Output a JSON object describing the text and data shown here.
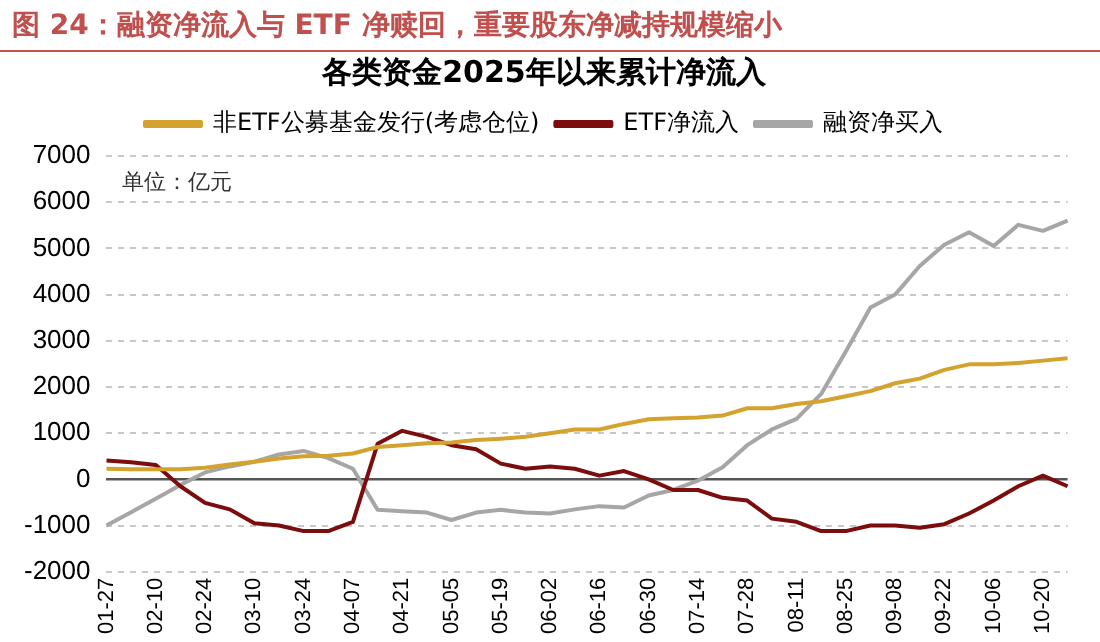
{
  "chart_data": {
    "type": "line",
    "title": "图 24：融资净流入与 ETF 净赎回，重要股东净减持规模缩小",
    "subtitle": "各类资金2025年以来累计净流入",
    "annotations": [
      "单位：亿元"
    ],
    "categories": [
      "01-27",
      null,
      "02-10",
      null,
      "02-24",
      null,
      "03-10",
      null,
      "03-24",
      null,
      "04-07",
      null,
      "04-21",
      null,
      "05-05",
      null,
      "05-19",
      null,
      "06-02",
      null,
      "06-16",
      null,
      "06-30",
      null,
      "07-14",
      null,
      "07-28",
      null,
      "08-11",
      null,
      "08-25",
      null,
      "09-08",
      null,
      "09-22",
      null,
      "10-06",
      null,
      "10-20",
      null
    ],
    "series": [
      {
        "name": "非ETF公募基金发行(考虑仓位)",
        "color": "#d4a22e",
        "values": [
          230,
          220,
          220,
          220,
          250,
          320,
          380,
          450,
          500,
          510,
          560,
          700,
          740,
          780,
          800,
          850,
          880,
          920,
          1000,
          1080,
          1080,
          1200,
          1300,
          1320,
          1340,
          1380,
          1540,
          1540,
          1630,
          1690,
          1800,
          1910,
          2080,
          2180,
          2370,
          2490,
          2490,
          2520,
          2570,
          2620
        ]
      },
      {
        "name": "ETF净流入",
        "color": "#7b0d0d",
        "values": [
          410,
          370,
          310,
          -150,
          -510,
          -650,
          -950,
          -1000,
          -1120,
          -1120,
          -920,
          770,
          1050,
          920,
          740,
          650,
          340,
          230,
          280,
          230,
          80,
          180,
          0,
          -230,
          -230,
          -400,
          -460,
          -850,
          -920,
          -1120,
          -1120,
          -1000,
          -1000,
          -1050,
          -970,
          -740,
          -460,
          -150,
          80,
          -150
        ]
      },
      {
        "name": "融资净买入",
        "color": "#a6a6a6",
        "values": [
          -1000,
          -710,
          -420,
          -120,
          150,
          280,
          380,
          540,
          615,
          460,
          230,
          -660,
          -690,
          -720,
          -880,
          -720,
          -660,
          -720,
          -740,
          -650,
          -580,
          -610,
          -350,
          -230,
          -30,
          260,
          740,
          1080,
          1310,
          1850,
          2770,
          3720,
          4000,
          4620,
          5080,
          5350,
          5050,
          5510,
          5380,
          5600
        ]
      }
    ],
    "ylim": [
      -2000,
      7000
    ],
    "yticks": [
      -2000,
      -1000,
      0,
      1000,
      2000,
      3000,
      4000,
      5000,
      6000,
      7000
    ],
    "grid": "y",
    "legend": "top",
    "marker": "none",
    "line_style": "solid"
  }
}
